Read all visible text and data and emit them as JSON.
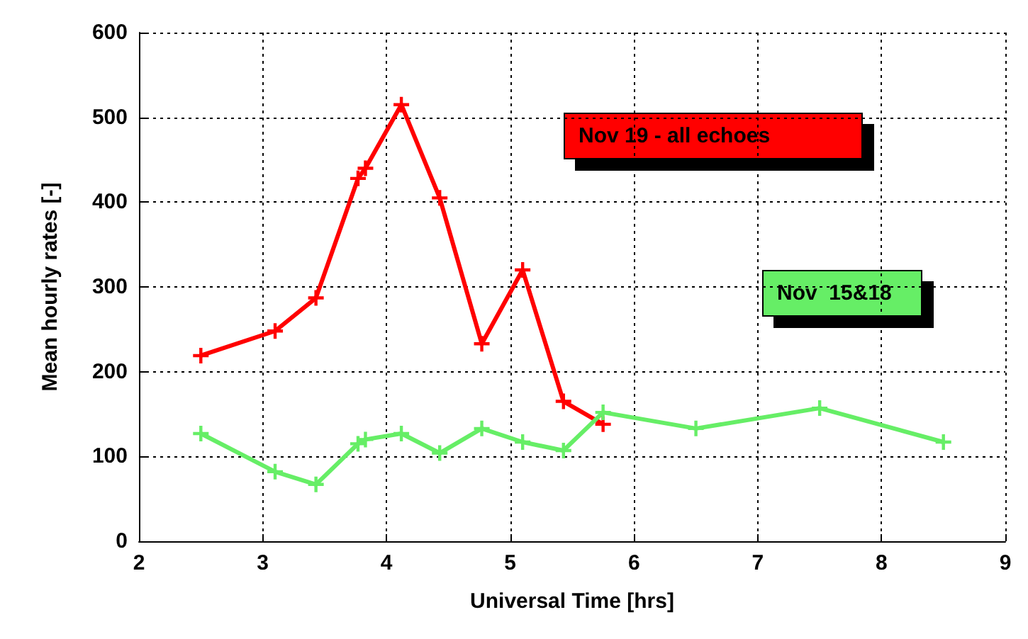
{
  "chart_data": {
    "type": "line",
    "xlabel": "Universal Time [hrs]",
    "ylabel": "Mean hourly rates [-]",
    "xlim": [
      2,
      9
    ],
    "xticks": [
      2,
      3,
      4,
      5,
      6,
      7,
      8,
      9
    ],
    "ylim": [
      0,
      600
    ],
    "yticks": [
      0,
      100,
      200,
      300,
      400,
      500,
      600
    ],
    "grid": true,
    "marker": "cross",
    "line_style": "solid",
    "legend": "right",
    "series": [
      {
        "name": "Nov 19 - all echoes",
        "color": "#ff0000",
        "x": [
          2.5,
          3.1,
          3.43,
          3.77,
          3.83,
          4.12,
          4.43,
          4.77,
          5.1,
          5.43,
          5.75
        ],
        "values": [
          219,
          248,
          287,
          428,
          440,
          515,
          405,
          233,
          320,
          165,
          138
        ]
      },
      {
        "name": "Nov  15&18",
        "color": "#66ee66",
        "x": [
          2.5,
          3.1,
          3.43,
          3.77,
          3.83,
          4.12,
          4.43,
          4.77,
          5.1,
          5.43,
          5.75,
          6.5,
          7.5,
          8.5
        ],
        "values": [
          127,
          82,
          67,
          115,
          120,
          127,
          104,
          133,
          117,
          107,
          152,
          133,
          157,
          117
        ]
      }
    ]
  }
}
